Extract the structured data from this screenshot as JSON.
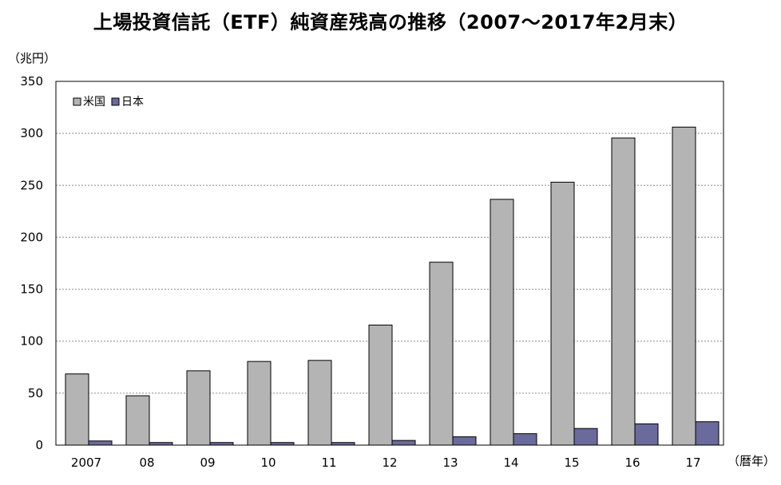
{
  "title": "上場投資信託（ETF）純資産残高の推移（2007〜2017年2月末）",
  "y_unit_label": "（兆円）",
  "x_unit_label": "（暦年）",
  "colors": {
    "us": "#b4b4b4",
    "japan": "#6a6a9c",
    "frame": "#000000",
    "grid": "#8c8c8c"
  },
  "chart_data": {
    "type": "bar",
    "title": "上場投資信託（ETF）純資産残高の推移（2007〜2017年2月末）",
    "xlabel": "（暦年）",
    "ylabel": "（兆円）",
    "ylim": [
      0,
      350
    ],
    "yticks": [
      0,
      50,
      100,
      150,
      200,
      250,
      300,
      350
    ],
    "grid": true,
    "legend_position": "top-left",
    "categories": [
      "2007",
      "08",
      "09",
      "10",
      "11",
      "12",
      "13",
      "14",
      "15",
      "16",
      "17"
    ],
    "series": [
      {
        "name": "米国",
        "color": "#b4b4b4",
        "values": [
          68.5,
          47.5,
          71.5,
          80.5,
          81.5,
          115.5,
          176,
          236.5,
          253,
          295.5,
          306
        ]
      },
      {
        "name": "日本",
        "color": "#6a6a9c",
        "values": [
          4,
          2.5,
          2.5,
          2.5,
          2.5,
          4.5,
          8,
          11,
          16,
          20.5,
          22.5
        ]
      }
    ]
  }
}
